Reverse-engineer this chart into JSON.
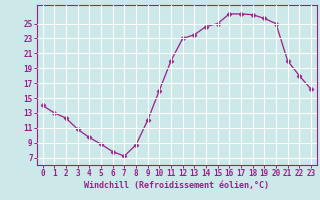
{
  "x": [
    0,
    1,
    2,
    3,
    4,
    5,
    6,
    7,
    8,
    9,
    10,
    11,
    12,
    13,
    14,
    15,
    16,
    17,
    18,
    19,
    20,
    21,
    22,
    23
  ],
  "y": [
    14.0,
    13.0,
    12.3,
    10.8,
    9.7,
    8.8,
    7.8,
    7.2,
    8.7,
    12.0,
    16.0,
    20.0,
    23.0,
    23.5,
    24.6,
    25.0,
    26.3,
    26.3,
    26.2,
    25.7,
    25.0,
    20.0,
    18.0,
    16.2
  ],
  "line_color": "#9b1f8a",
  "marker": "D",
  "marker_size": 2.5,
  "bg_color": "#cce8e8",
  "grid_color": "#ffffff",
  "xlabel": "Windchill (Refroidissement éolien,°C)",
  "xticks": [
    0,
    1,
    2,
    3,
    4,
    5,
    6,
    7,
    8,
    9,
    10,
    11,
    12,
    13,
    14,
    15,
    16,
    17,
    18,
    19,
    20,
    21,
    22,
    23
  ],
  "yticks": [
    7,
    9,
    11,
    13,
    15,
    17,
    19,
    21,
    23,
    25
  ],
  "ylim": [
    6.0,
    27.5
  ],
  "xlim": [
    -0.5,
    23.5
  ],
  "tick_color": "#9b1f8a",
  "label_fontsize": 6.0,
  "tick_fontsize": 5.5,
  "spine_color": "#9b1f8a"
}
